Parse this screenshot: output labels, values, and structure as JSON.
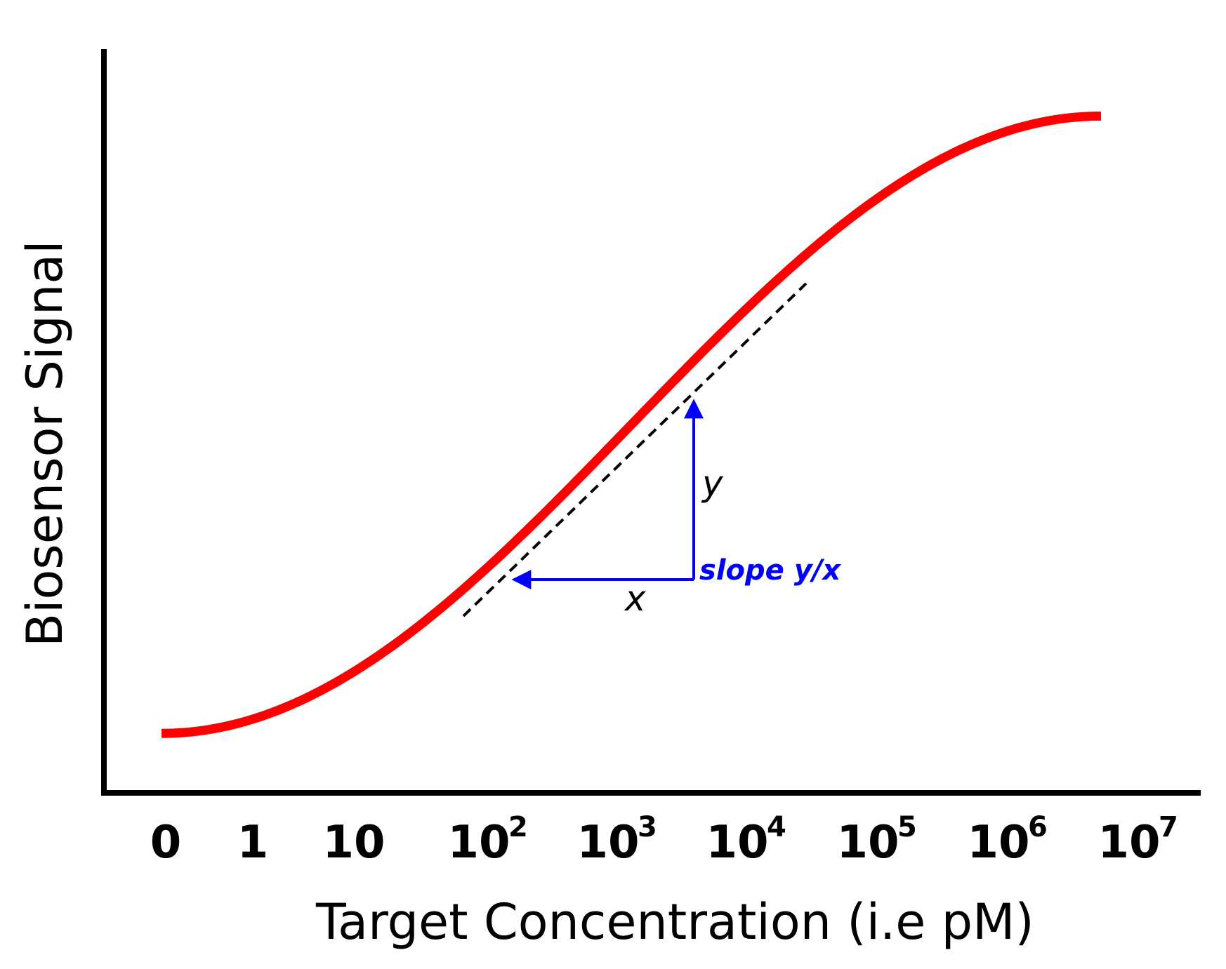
{
  "chart_data": {
    "type": "line",
    "xlabel": "Target Concentration (i.e pM)",
    "ylabel": "Biosensor Signal",
    "x_ticks": [
      {
        "base": "0",
        "exp": ""
      },
      {
        "base": "1",
        "exp": ""
      },
      {
        "base": "10",
        "exp": ""
      },
      {
        "base": "10",
        "exp": "2"
      },
      {
        "base": "10",
        "exp": "3"
      },
      {
        "base": "10",
        "exp": "4"
      },
      {
        "base": "10",
        "exp": "5"
      },
      {
        "base": "10",
        "exp": "6"
      },
      {
        "base": "10",
        "exp": "7"
      }
    ],
    "x_scale": "log",
    "grid": false,
    "series": [
      {
        "color": "#ff0000",
        "curve": "sigmoid",
        "x_index": [
          0,
          8
        ],
        "y_relative": [
          0.08,
          0.91
        ]
      }
    ],
    "annotations": {
      "tangent_line": {
        "style": "dashed",
        "color": "#000000"
      },
      "y_label": "y",
      "x_label": "x",
      "slope_label": "slope y/x",
      "arrow_color": "#0000ff"
    }
  }
}
